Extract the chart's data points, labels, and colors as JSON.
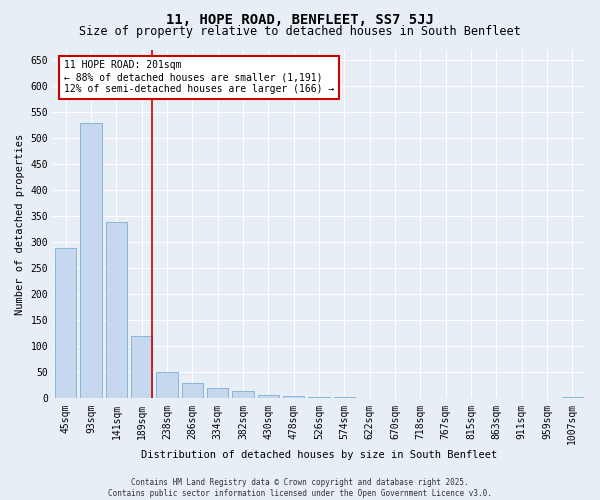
{
  "title": "11, HOPE ROAD, BENFLEET, SS7 5JJ",
  "subtitle": "Size of property relative to detached houses in South Benfleet",
  "xlabel": "Distribution of detached houses by size in South Benfleet",
  "ylabel": "Number of detached properties",
  "categories": [
    "45sqm",
    "93sqm",
    "141sqm",
    "189sqm",
    "238sqm",
    "286sqm",
    "334sqm",
    "382sqm",
    "430sqm",
    "478sqm",
    "526sqm",
    "574sqm",
    "622sqm",
    "670sqm",
    "718sqm",
    "767sqm",
    "815sqm",
    "863sqm",
    "911sqm",
    "959sqm",
    "1007sqm"
  ],
  "values": [
    290,
    530,
    340,
    120,
    50,
    30,
    20,
    15,
    7,
    5,
    3,
    2,
    1,
    1,
    1,
    0,
    0,
    0,
    0,
    0,
    2
  ],
  "bar_color": "#c5d8ee",
  "bar_edge_color": "#7aafd4",
  "highlight_line_color": "#cc0000",
  "annotation_text": "11 HOPE ROAD: 201sqm\n← 88% of detached houses are smaller (1,191)\n12% of semi-detached houses are larger (166) →",
  "annotation_box_edge_color": "#cc0000",
  "ylim": [
    0,
    670
  ],
  "yticks": [
    0,
    50,
    100,
    150,
    200,
    250,
    300,
    350,
    400,
    450,
    500,
    550,
    600,
    650
  ],
  "footer": "Contains HM Land Registry data © Crown copyright and database right 2025.\nContains public sector information licensed under the Open Government Licence v3.0.",
  "bg_color": "#e8eef6",
  "plot_bg_color": "#e8eef6",
  "grid_color": "#ffffff",
  "title_fontsize": 10,
  "subtitle_fontsize": 8.5,
  "axis_label_fontsize": 7.5,
  "tick_fontsize": 7,
  "annotation_fontsize": 7,
  "footer_fontsize": 5.5
}
